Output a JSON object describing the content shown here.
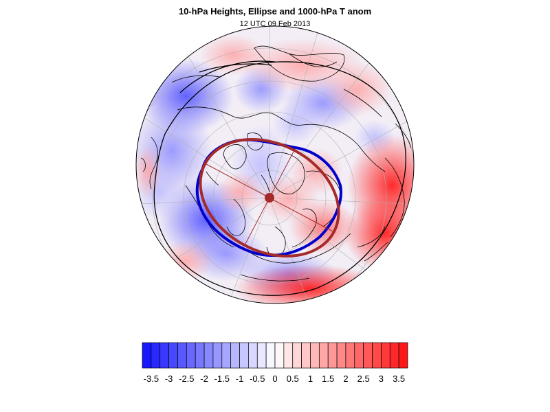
{
  "title": "10-hPa Heights, Ellipse and 1000-hPa T anom",
  "subtitle": "12 UTC 09 Feb 2013",
  "colorbar": {
    "labels": [
      "-3.5",
      "-3",
      "-2.5",
      "-2",
      "-1.5",
      "-1",
      "-0.5",
      "0",
      "0.5",
      "1",
      "1.5",
      "2",
      "2.5",
      "3",
      "3.5"
    ],
    "levels": [
      -3.75,
      -3.5,
      -3.25,
      -3,
      -2.75,
      -2.5,
      -2.25,
      -2,
      -1.75,
      -1.5,
      -1.25,
      -1,
      -0.75,
      -0.5,
      -0.25,
      0,
      0.25,
      0.5,
      0.75,
      1,
      1.25,
      1.5,
      1.75,
      2,
      2.25,
      2.5,
      2.75,
      3,
      3.25,
      3.5,
      3.75
    ],
    "colors": {
      "cold_max": "#1010ff",
      "neutral": "#ffffff",
      "warm_max": "#ff1010"
    }
  },
  "overlays": {
    "height_contour_color": "#0000cc",
    "ellipse_color": "#a52a2a",
    "coastline_color": "#000000",
    "graticule_color": "#b0b0b0"
  },
  "projection": "polar-stereographic-north"
}
